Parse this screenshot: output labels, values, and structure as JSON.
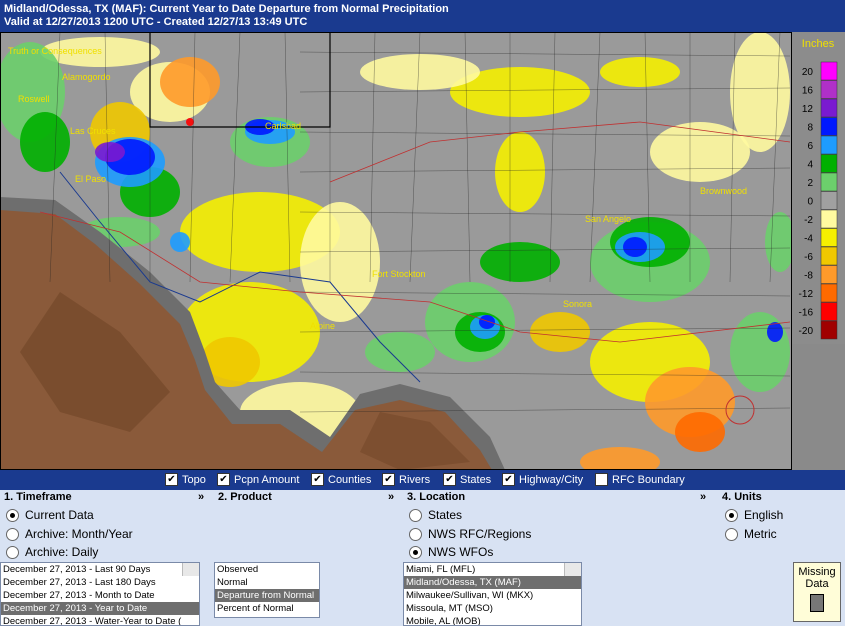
{
  "header": {
    "title": "Midland/Odessa, TX (MAF): Current Year to Date Departure from Normal Precipitation",
    "subtitle": "Valid at 12/27/2013 1200 UTC - Created 12/27/13 13:49 UTC"
  },
  "map": {
    "places": [
      "Truth or Consequences",
      "Alamogordo",
      "Roswell",
      "Las Cruces",
      "Carlsbad",
      "El Paso",
      "Alpine",
      "Fort Stockton",
      "San Angelo",
      "Sonora",
      "Brownwood"
    ],
    "legend": {
      "title": "Inches",
      "items": [
        {
          "label": "20",
          "color": "#ff00ff"
        },
        {
          "label": "16",
          "color": "#b030c8"
        },
        {
          "label": "12",
          "color": "#7a1ad0"
        },
        {
          "label": "8",
          "color": "#0018ff"
        },
        {
          "label": "6",
          "color": "#1e9cff"
        },
        {
          "label": "4",
          "color": "#00b000"
        },
        {
          "label": "2",
          "color": "#6ccf6c"
        },
        {
          "label": "0",
          "color": "#a0a0a0"
        },
        {
          "label": "-2",
          "color": "#fffaa0"
        },
        {
          "label": "-4",
          "color": "#f5f000"
        },
        {
          "label": "-6",
          "color": "#f0c800"
        },
        {
          "label": "-8",
          "color": "#ff9a2a"
        },
        {
          "label": "-12",
          "color": "#ff6a00"
        },
        {
          "label": "-16",
          "color": "#ff0000"
        },
        {
          "label": "-20",
          "color": "#a00000"
        }
      ]
    }
  },
  "layers": [
    {
      "label": "Topo",
      "checked": true
    },
    {
      "label": "Pcpn Amount",
      "checked": true
    },
    {
      "label": "Counties",
      "checked": true
    },
    {
      "label": "Rivers",
      "checked": true
    },
    {
      "label": "States",
      "checked": true
    },
    {
      "label": "Highway/City",
      "checked": true
    },
    {
      "label": "RFC Boundary",
      "checked": false
    }
  ],
  "panels": [
    {
      "title": "1. Timeframe",
      "expand": "»",
      "options": [
        {
          "label": "Current Data",
          "checked": true
        },
        {
          "label": "Archive: Month/Year",
          "checked": false
        },
        {
          "label": "Archive: Daily",
          "checked": false
        }
      ],
      "list": [
        {
          "label": "December 27, 2013 - Last 90 Days",
          "selected": false
        },
        {
          "label": "December 27, 2013 - Last 180 Days",
          "selected": false
        },
        {
          "label": "December 27, 2013 - Month to Date",
          "selected": false
        },
        {
          "label": "December 27, 2013 - Year to Date",
          "selected": true
        },
        {
          "label": "December 27, 2013 - Water-Year to Date (",
          "selected": false
        }
      ]
    },
    {
      "title": "2. Product",
      "expand": "»",
      "options": [],
      "list": [
        {
          "label": "Observed",
          "selected": false
        },
        {
          "label": "Normal",
          "selected": false
        },
        {
          "label": "Departure from Normal",
          "selected": true
        },
        {
          "label": "Percent of Normal",
          "selected": false
        }
      ]
    },
    {
      "title": "3. Location",
      "expand": "»",
      "options": [
        {
          "label": "States",
          "checked": false
        },
        {
          "label": "NWS RFC/Regions",
          "checked": false
        },
        {
          "label": "NWS WFOs",
          "checked": true
        }
      ],
      "list": [
        {
          "label": "Miami, FL (MFL)",
          "selected": false
        },
        {
          "label": "Midland/Odessa, TX (MAF)",
          "selected": true
        },
        {
          "label": "Milwaukee/Sullivan, WI (MKX)",
          "selected": false
        },
        {
          "label": "Missoula, MT (MSO)",
          "selected": false
        },
        {
          "label": "Mobile, AL (MOB)",
          "selected": false
        }
      ]
    },
    {
      "title": "4. Units",
      "options": [
        {
          "label": "English",
          "checked": true
        },
        {
          "label": "Metric",
          "checked": false
        }
      ],
      "list": []
    }
  ],
  "missing_data": "Missing Data"
}
